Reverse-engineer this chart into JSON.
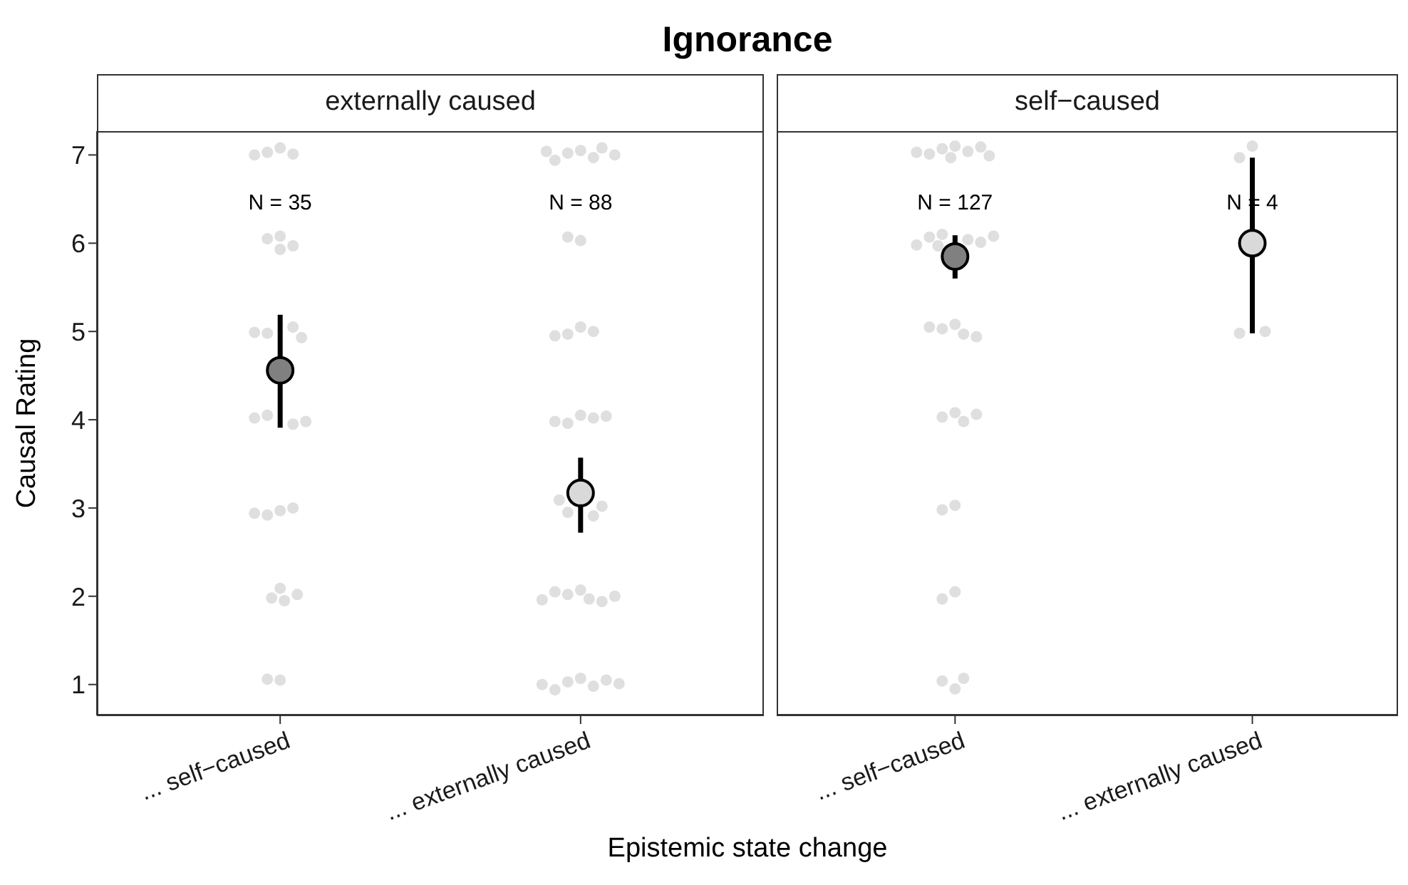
{
  "chart_data": [
    {
      "type": "scatter",
      "title": "Ignorance",
      "subtitle": "externally caused",
      "xlabel": "Epistemic state change",
      "ylabel": "Causal Rating",
      "categories": [
        "... self−caused",
        "... externally caused"
      ],
      "ylim": [
        0.65,
        7.27
      ],
      "yticks": [
        1,
        2,
        3,
        4,
        5,
        6,
        7
      ],
      "series": [
        {
          "color": "#d9d9d9",
          "x": [
            "... self−caused",
            "... self−caused",
            "... self−caused",
            "... self−caused",
            "... self−caused",
            "... self−caused",
            "... self−caused",
            "... self−caused",
            "... self−caused",
            "... self−caused",
            "... self−caused",
            "... self−caused",
            "... self−caused",
            "... self−caused",
            "... self−caused",
            "... self−caused",
            "... self−caused",
            "... self−caused",
            "... self−caused",
            "... self−caused",
            "... self−caused",
            "... self−caused",
            "... self−caused",
            "... self−caused",
            "... self−caused",
            "... self−caused",
            "... externally caused",
            "... externally caused",
            "... externally caused",
            "... externally caused",
            "... externally caused",
            "... externally caused",
            "... externally caused",
            "... externally caused",
            "... externally caused",
            "... externally caused",
            "... externally caused",
            "... externally caused",
            "... externally caused",
            "... externally caused",
            "... externally caused",
            "... externally caused",
            "... externally caused",
            "... externally caused",
            "... externally caused",
            "... externally caused",
            "... externally caused",
            "... externally caused",
            "... externally caused",
            "... externally caused",
            "... externally caused",
            "... externally caused",
            "... externally caused",
            "... externally caused",
            "... externally caused",
            "... externally caused",
            "... externally caused",
            "... externally caused",
            "... externally caused",
            "... externally caused",
            "... externally caused",
            "... externally caused"
          ],
          "values": [
            7.08,
            7.03,
            7.01,
            7.0,
            6.08,
            5.93,
            6.05,
            5.97,
            4.98,
            5.05,
            4.93,
            4.99,
            4.05,
            3.95,
            4.02,
            3.98,
            2.97,
            2.92,
            3.0,
            2.94,
            2.09,
            1.98,
            1.95,
            2.02,
            1.05,
            1.06,
            7.05,
            7.02,
            6.97,
            7.08,
            6.94,
            7.04,
            7.0,
            6.03,
            6.07,
            5.05,
            4.97,
            5.0,
            4.95,
            4.05,
            3.96,
            4.02,
            3.98,
            4.04,
            3.09,
            2.95,
            2.91,
            3.02,
            2.07,
            2.02,
            1.97,
            1.94,
            2.05,
            2.0,
            1.96,
            1.07,
            1.03,
            0.98,
            0.94,
            1.05,
            1.0,
            1.01
          ]
        },
        {
          "colors": [
            "#808080",
            "#d9d9d9"
          ],
          "x": [
            "... self−caused",
            "... externally caused"
          ],
          "values": [
            4.56,
            3.17
          ],
          "errors": [
            [
              3.91,
              5.19
            ],
            [
              2.72,
              3.57
            ]
          ]
        }
      ],
      "annotations": [
        "N = 35",
        "N = 88"
      ]
    },
    {
      "type": "scatter",
      "subtitle": "self−caused",
      "categories": [
        "... self−caused",
        "... externally caused"
      ],
      "ylim": [
        0.65,
        7.27
      ],
      "yticks": [
        1,
        2,
        3,
        4,
        5,
        6,
        7
      ],
      "tick_labels": "x",
      "series": [
        {
          "color": "#d9d9d9",
          "x": [
            "... self−caused",
            "... self−caused",
            "... self−caused",
            "... self−caused",
            "... self−caused",
            "... self−caused",
            "... self−caused",
            "... self−caused",
            "... self−caused",
            "... self−caused",
            "... self−caused",
            "... self−caused",
            "... self−caused",
            "... self−caused",
            "... self−caused",
            "... self−caused",
            "... self−caused",
            "... self−caused",
            "... self−caused",
            "... self−caused",
            "... self−caused",
            "... self−caused",
            "... self−caused",
            "... self−caused",
            "... self−caused",
            "... self−caused",
            "... self−caused",
            "... self−caused",
            "... self−caused",
            "... self−caused",
            "... self−caused",
            "... externally caused",
            "... externally caused",
            "... externally caused",
            "... externally caused"
          ],
          "values": [
            7.1,
            7.07,
            7.04,
            7.01,
            6.97,
            7.09,
            7.03,
            6.99,
            6.1,
            6.04,
            6.07,
            6.01,
            5.97,
            5.98,
            6.08,
            5.08,
            5.03,
            4.97,
            4.94,
            5.05,
            4.08,
            4.03,
            3.98,
            4.06,
            3.03,
            2.98,
            2.05,
            1.97,
            0.95,
            1.04,
            1.07,
            6.97,
            7.1,
            4.98,
            5.0
          ]
        },
        {
          "colors": [
            "#808080",
            "#d9d9d9"
          ],
          "x": [
            "... self−caused",
            "... externally caused"
          ],
          "values": [
            5.85,
            6.0
          ],
          "errors": [
            [
              5.6,
              6.09
            ],
            [
              4.98,
              6.97
            ]
          ]
        }
      ],
      "annotations": [
        "N = 127",
        "N = 4"
      ]
    }
  ]
}
